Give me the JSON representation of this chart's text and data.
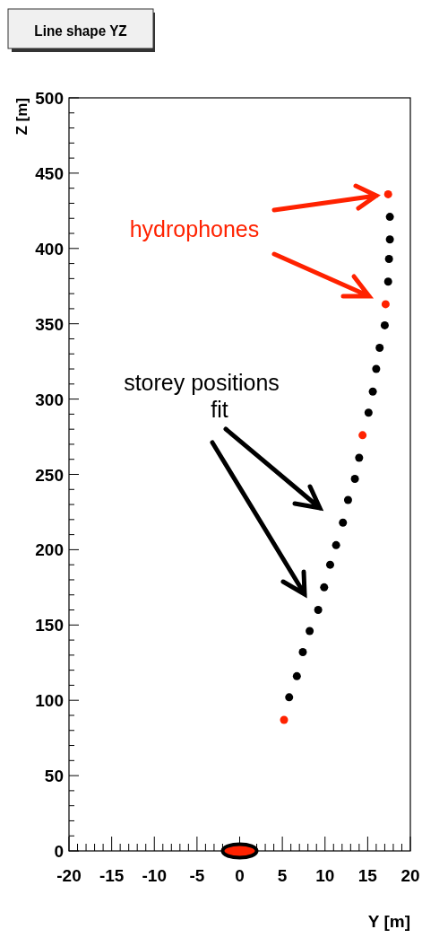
{
  "chart_data": {
    "type": "scatter",
    "title": "Line shape YZ",
    "xlabel": "Y [m]",
    "ylabel": "Z [m]",
    "xlim": [
      -20,
      20
    ],
    "xticks": [
      -20,
      -15,
      -10,
      -5,
      0,
      5,
      10,
      15,
      20
    ],
    "ylim": [
      0,
      500
    ],
    "yticks": [
      0,
      50,
      100,
      150,
      200,
      250,
      300,
      350,
      400,
      450,
      500
    ],
    "marker": "circle",
    "series": [
      {
        "color": "#000000",
        "x": [
          17.6,
          17.6,
          17.5,
          17.4,
          17.0,
          16.4,
          16.0,
          15.6,
          15.1,
          14.0,
          13.5,
          12.7,
          12.1,
          11.3,
          10.6,
          9.9,
          9.2,
          8.2,
          7.4,
          6.7,
          5.8
        ],
        "values": [
          421,
          406,
          393,
          378,
          349,
          334,
          320,
          305,
          291,
          261,
          247,
          233,
          218,
          203,
          190,
          175,
          160,
          146,
          132,
          116,
          102
        ]
      },
      {
        "color": "#ff2200",
        "x": [
          17.4,
          17.1,
          14.4,
          5.2
        ],
        "values": [
          436,
          363,
          276,
          87
        ]
      }
    ],
    "annotations": [
      "hydrophones",
      "storey positions\nfit"
    ]
  }
}
